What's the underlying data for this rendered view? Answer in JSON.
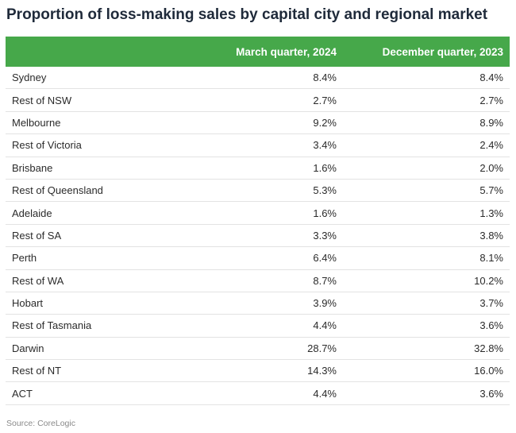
{
  "chart_data": {
    "type": "table",
    "title": "Proportion of loss-making sales by capital city and regional market",
    "columns": [
      "",
      "March quarter, 2024",
      "December quarter, 2023"
    ],
    "unit": "%",
    "rows": [
      {
        "name": "Sydney",
        "values": [
          "8.4%",
          "8.4%"
        ]
      },
      {
        "name": "Rest of NSW",
        "values": [
          "2.7%",
          "2.7%"
        ]
      },
      {
        "name": "Melbourne",
        "values": [
          "9.2%",
          "8.9%"
        ]
      },
      {
        "name": "Rest of Victoria",
        "values": [
          "3.4%",
          "2.4%"
        ]
      },
      {
        "name": "Brisbane",
        "values": [
          "1.6%",
          "2.0%"
        ]
      },
      {
        "name": "Rest of Queensland",
        "values": [
          "5.3%",
          "5.7%"
        ]
      },
      {
        "name": "Adelaide",
        "values": [
          "1.6%",
          "1.3%"
        ]
      },
      {
        "name": "Rest of SA",
        "values": [
          "3.3%",
          "3.8%"
        ]
      },
      {
        "name": "Perth",
        "values": [
          "6.4%",
          "8.1%"
        ]
      },
      {
        "name": "Rest of WA",
        "values": [
          "8.7%",
          "10.2%"
        ]
      },
      {
        "name": "Hobart",
        "values": [
          "3.9%",
          "3.7%"
        ]
      },
      {
        "name": "Rest of Tasmania",
        "values": [
          "4.4%",
          "3.6%"
        ]
      },
      {
        "name": "Darwin",
        "values": [
          "28.7%",
          "32.8%"
        ]
      },
      {
        "name": "Rest of NT",
        "values": [
          "14.3%",
          "16.0%"
        ]
      },
      {
        "name": "ACT",
        "values": [
          "4.4%",
          "3.6%"
        ]
      }
    ],
    "source": "Source: CoreLogic"
  },
  "colors": {
    "header_bg": "#46a84a",
    "header_text": "#ffffff",
    "title_text": "#1f2a3a",
    "row_border": "#e3e3e3"
  }
}
